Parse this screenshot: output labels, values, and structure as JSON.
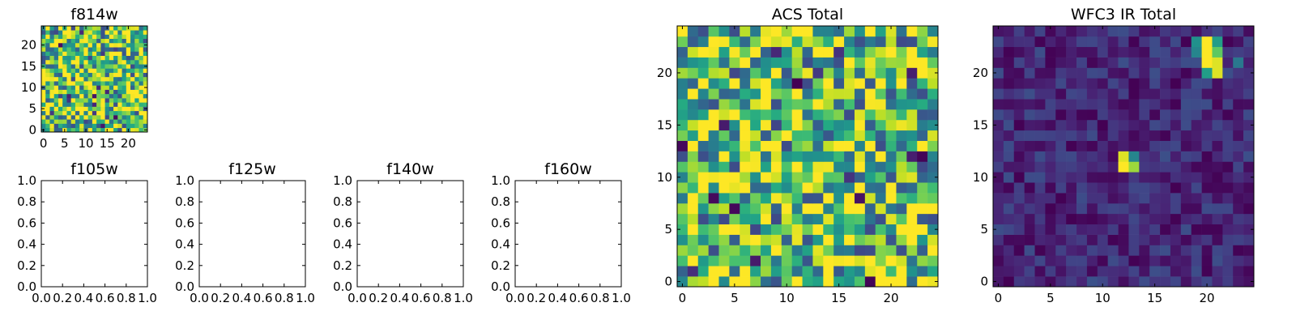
{
  "chart_data": [
    {
      "type": "heatmap",
      "title": "f814w",
      "xlim": [
        -0.5,
        24.5
      ],
      "ylim": [
        -0.5,
        24.5
      ],
      "xticks": [
        0,
        5,
        10,
        15,
        20
      ],
      "yticks": [
        0,
        5,
        10,
        15,
        20
      ],
      "colormap": "viridis",
      "grid": false,
      "noise": {
        "base": 0.72,
        "amp": 0.5,
        "seed": 11
      },
      "hot_pixels": []
    },
    {
      "type": "empty",
      "title": "f105w",
      "xlim": [
        0,
        1
      ],
      "ylim": [
        0,
        1
      ],
      "xticks": [
        "0.0",
        "0.2",
        "0.4",
        "0.6",
        "0.8",
        "1.0"
      ],
      "yticks": [
        "0.0",
        "0.2",
        "0.4",
        "0.6",
        "0.8",
        "1.0"
      ]
    },
    {
      "type": "empty",
      "title": "f125w",
      "xlim": [
        0,
        1
      ],
      "ylim": [
        0,
        1
      ],
      "xticks": [
        "0.0",
        "0.2",
        "0.4",
        "0.6",
        "0.8",
        "1.0"
      ],
      "yticks": [
        "0.0",
        "0.2",
        "0.4",
        "0.6",
        "0.8",
        "1.0"
      ]
    },
    {
      "type": "empty",
      "title": "f140w",
      "xlim": [
        0,
        1
      ],
      "ylim": [
        0,
        1
      ],
      "xticks": [
        "0.0",
        "0.2",
        "0.4",
        "0.6",
        "0.8",
        "1.0"
      ],
      "yticks": [
        "0.0",
        "0.2",
        "0.4",
        "0.6",
        "0.8",
        "1.0"
      ]
    },
    {
      "type": "empty",
      "title": "f160w",
      "xlim": [
        0,
        1
      ],
      "ylim": [
        0,
        1
      ],
      "xticks": [
        "0.0",
        "0.2",
        "0.4",
        "0.6",
        "0.8",
        "1.0"
      ],
      "yticks": [
        "0.0",
        "0.2",
        "0.4",
        "0.6",
        "0.8",
        "1.0"
      ]
    },
    {
      "type": "heatmap",
      "title": "ACS Total",
      "xlim": [
        -0.5,
        24.5
      ],
      "ylim": [
        -0.5,
        24.5
      ],
      "xticks": [
        0,
        5,
        10,
        15,
        20
      ],
      "yticks": [
        0,
        5,
        10,
        15,
        20
      ],
      "colormap": "viridis",
      "grid": false,
      "noise": {
        "base": 0.7,
        "amp": 0.48,
        "seed": 29
      },
      "hot_pixels": []
    },
    {
      "type": "heatmap",
      "title": "WFC3 IR Total",
      "xlim": [
        -0.5,
        24.5
      ],
      "ylim": [
        -0.5,
        24.5
      ],
      "xticks": [
        0,
        5,
        10,
        15,
        20
      ],
      "yticks": [
        0,
        5,
        10,
        15,
        20
      ],
      "colormap": "viridis",
      "grid": false,
      "noise": {
        "base": 0.12,
        "amp": 0.12,
        "seed": 47
      },
      "hot_pixels": [
        {
          "x": 20,
          "y": 23,
          "v": 1.0
        },
        {
          "x": 21,
          "y": 23,
          "v": 0.55
        },
        {
          "x": 19,
          "y": 23,
          "v": 0.5
        },
        {
          "x": 20,
          "y": 22,
          "v": 1.0
        },
        {
          "x": 21,
          "y": 22,
          "v": 0.75
        },
        {
          "x": 19,
          "y": 22,
          "v": 0.45
        },
        {
          "x": 20,
          "y": 21,
          "v": 1.0
        },
        {
          "x": 21,
          "y": 21,
          "v": 0.95
        },
        {
          "x": 20,
          "y": 20,
          "v": 0.55
        },
        {
          "x": 21,
          "y": 20,
          "v": 0.95
        },
        {
          "x": 23,
          "y": 21,
          "v": 0.4
        },
        {
          "x": 12,
          "y": 12,
          "v": 0.95
        },
        {
          "x": 13,
          "y": 12,
          "v": 0.45
        },
        {
          "x": 12,
          "y": 11,
          "v": 1.0
        },
        {
          "x": 13,
          "y": 11,
          "v": 0.85
        }
      ]
    }
  ]
}
